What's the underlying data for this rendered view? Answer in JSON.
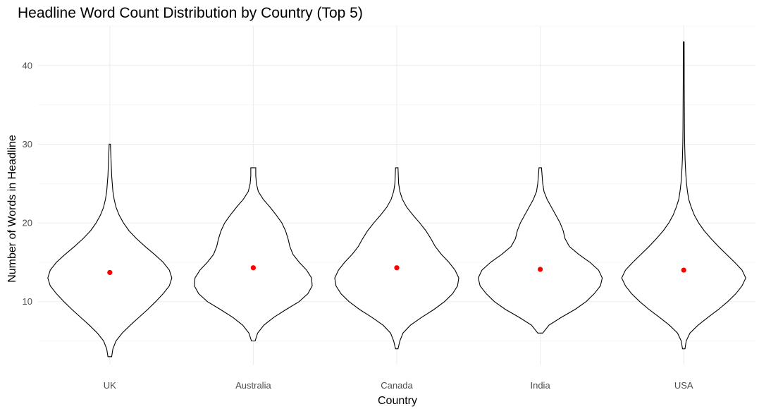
{
  "chart_data": {
    "type": "violin",
    "title": "Headline Word Count Distribution by Country (Top 5)",
    "xlabel": "Country",
    "ylabel": "Number of Words in Headline",
    "ylim": [
      2,
      45
    ],
    "yticks": [
      10,
      20,
      30,
      40
    ],
    "grid": true,
    "legend": "none",
    "categories": [
      "UK",
      "Australia",
      "Canada",
      "India",
      "USA"
    ],
    "mean_color": "#ff0000",
    "outline_color": "#000000",
    "series": [
      {
        "category": "UK",
        "min": 3,
        "max": 30,
        "mean": 13.7,
        "density": [
          [
            3,
            0.03
          ],
          [
            4,
            0.05
          ],
          [
            5,
            0.1
          ],
          [
            6,
            0.2
          ],
          [
            7,
            0.33
          ],
          [
            8,
            0.47
          ],
          [
            9,
            0.61
          ],
          [
            10,
            0.74
          ],
          [
            11,
            0.86
          ],
          [
            12,
            0.96
          ],
          [
            13,
            1.0
          ],
          [
            14,
            0.96
          ],
          [
            15,
            0.86
          ],
          [
            16,
            0.72
          ],
          [
            17,
            0.57
          ],
          [
            18,
            0.43
          ],
          [
            19,
            0.31
          ],
          [
            20,
            0.22
          ],
          [
            21,
            0.15
          ],
          [
            22,
            0.1
          ],
          [
            23,
            0.07
          ],
          [
            24,
            0.05
          ],
          [
            25,
            0.04
          ],
          [
            26,
            0.03
          ],
          [
            27,
            0.025
          ],
          [
            28,
            0.02
          ],
          [
            29,
            0.015
          ],
          [
            30,
            0.01
          ]
        ]
      },
      {
        "category": "Australia",
        "min": 5,
        "max": 27,
        "mean": 14.3,
        "density": [
          [
            5,
            0.03
          ],
          [
            6,
            0.07
          ],
          [
            7,
            0.17
          ],
          [
            8,
            0.33
          ],
          [
            9,
            0.53
          ],
          [
            10,
            0.74
          ],
          [
            11,
            0.88
          ],
          [
            12,
            0.95
          ],
          [
            13,
            0.94
          ],
          [
            14,
            0.86
          ],
          [
            15,
            0.74
          ],
          [
            16,
            0.64
          ],
          [
            17,
            0.59
          ],
          [
            18,
            0.56
          ],
          [
            19,
            0.52
          ],
          [
            20,
            0.46
          ],
          [
            21,
            0.37
          ],
          [
            22,
            0.27
          ],
          [
            23,
            0.16
          ],
          [
            24,
            0.08
          ],
          [
            25,
            0.05
          ],
          [
            26,
            0.04
          ],
          [
            27,
            0.04
          ]
        ]
      },
      {
        "category": "Canada",
        "min": 4,
        "max": 27,
        "mean": 14.3,
        "density": [
          [
            4,
            0.02
          ],
          [
            5,
            0.05
          ],
          [
            6,
            0.1
          ],
          [
            7,
            0.22
          ],
          [
            8,
            0.4
          ],
          [
            9,
            0.6
          ],
          [
            10,
            0.77
          ],
          [
            11,
            0.9
          ],
          [
            12,
            0.98
          ],
          [
            13,
            1.0
          ],
          [
            14,
            0.94
          ],
          [
            15,
            0.84
          ],
          [
            16,
            0.72
          ],
          [
            17,
            0.62
          ],
          [
            18,
            0.55
          ],
          [
            19,
            0.47
          ],
          [
            20,
            0.37
          ],
          [
            21,
            0.26
          ],
          [
            22,
            0.16
          ],
          [
            23,
            0.09
          ],
          [
            24,
            0.05
          ],
          [
            25,
            0.03
          ],
          [
            26,
            0.025
          ],
          [
            27,
            0.02
          ]
        ]
      },
      {
        "category": "India",
        "min": 6,
        "max": 27,
        "mean": 14.1,
        "density": [
          [
            6,
            0.04
          ],
          [
            7,
            0.14
          ],
          [
            8,
            0.34
          ],
          [
            9,
            0.56
          ],
          [
            10,
            0.74
          ],
          [
            11,
            0.87
          ],
          [
            12,
            0.97
          ],
          [
            13,
            1.0
          ],
          [
            14,
            0.94
          ],
          [
            15,
            0.8
          ],
          [
            16,
            0.62
          ],
          [
            17,
            0.47
          ],
          [
            18,
            0.4
          ],
          [
            19,
            0.37
          ],
          [
            20,
            0.32
          ],
          [
            21,
            0.25
          ],
          [
            22,
            0.18
          ],
          [
            23,
            0.11
          ],
          [
            24,
            0.06
          ],
          [
            25,
            0.04
          ],
          [
            26,
            0.03
          ],
          [
            27,
            0.02
          ]
        ]
      },
      {
        "category": "USA",
        "min": 4,
        "max": 43,
        "mean": 14.0,
        "density": [
          [
            4,
            0.02
          ],
          [
            5,
            0.04
          ],
          [
            6,
            0.1
          ],
          [
            7,
            0.23
          ],
          [
            8,
            0.39
          ],
          [
            9,
            0.56
          ],
          [
            10,
            0.71
          ],
          [
            11,
            0.84
          ],
          [
            12,
            0.94
          ],
          [
            13,
            1.0
          ],
          [
            14,
            0.94
          ],
          [
            15,
            0.82
          ],
          [
            16,
            0.69
          ],
          [
            17,
            0.56
          ],
          [
            18,
            0.44
          ],
          [
            19,
            0.33
          ],
          [
            20,
            0.24
          ],
          [
            21,
            0.17
          ],
          [
            22,
            0.12
          ],
          [
            23,
            0.08
          ],
          [
            24,
            0.06
          ],
          [
            25,
            0.045
          ],
          [
            26,
            0.035
          ],
          [
            27,
            0.028
          ],
          [
            28,
            0.022
          ],
          [
            30,
            0.015
          ],
          [
            32,
            0.012
          ],
          [
            35,
            0.01
          ],
          [
            38,
            0.008
          ],
          [
            40,
            0.008
          ],
          [
            43,
            0.006
          ]
        ]
      }
    ]
  }
}
